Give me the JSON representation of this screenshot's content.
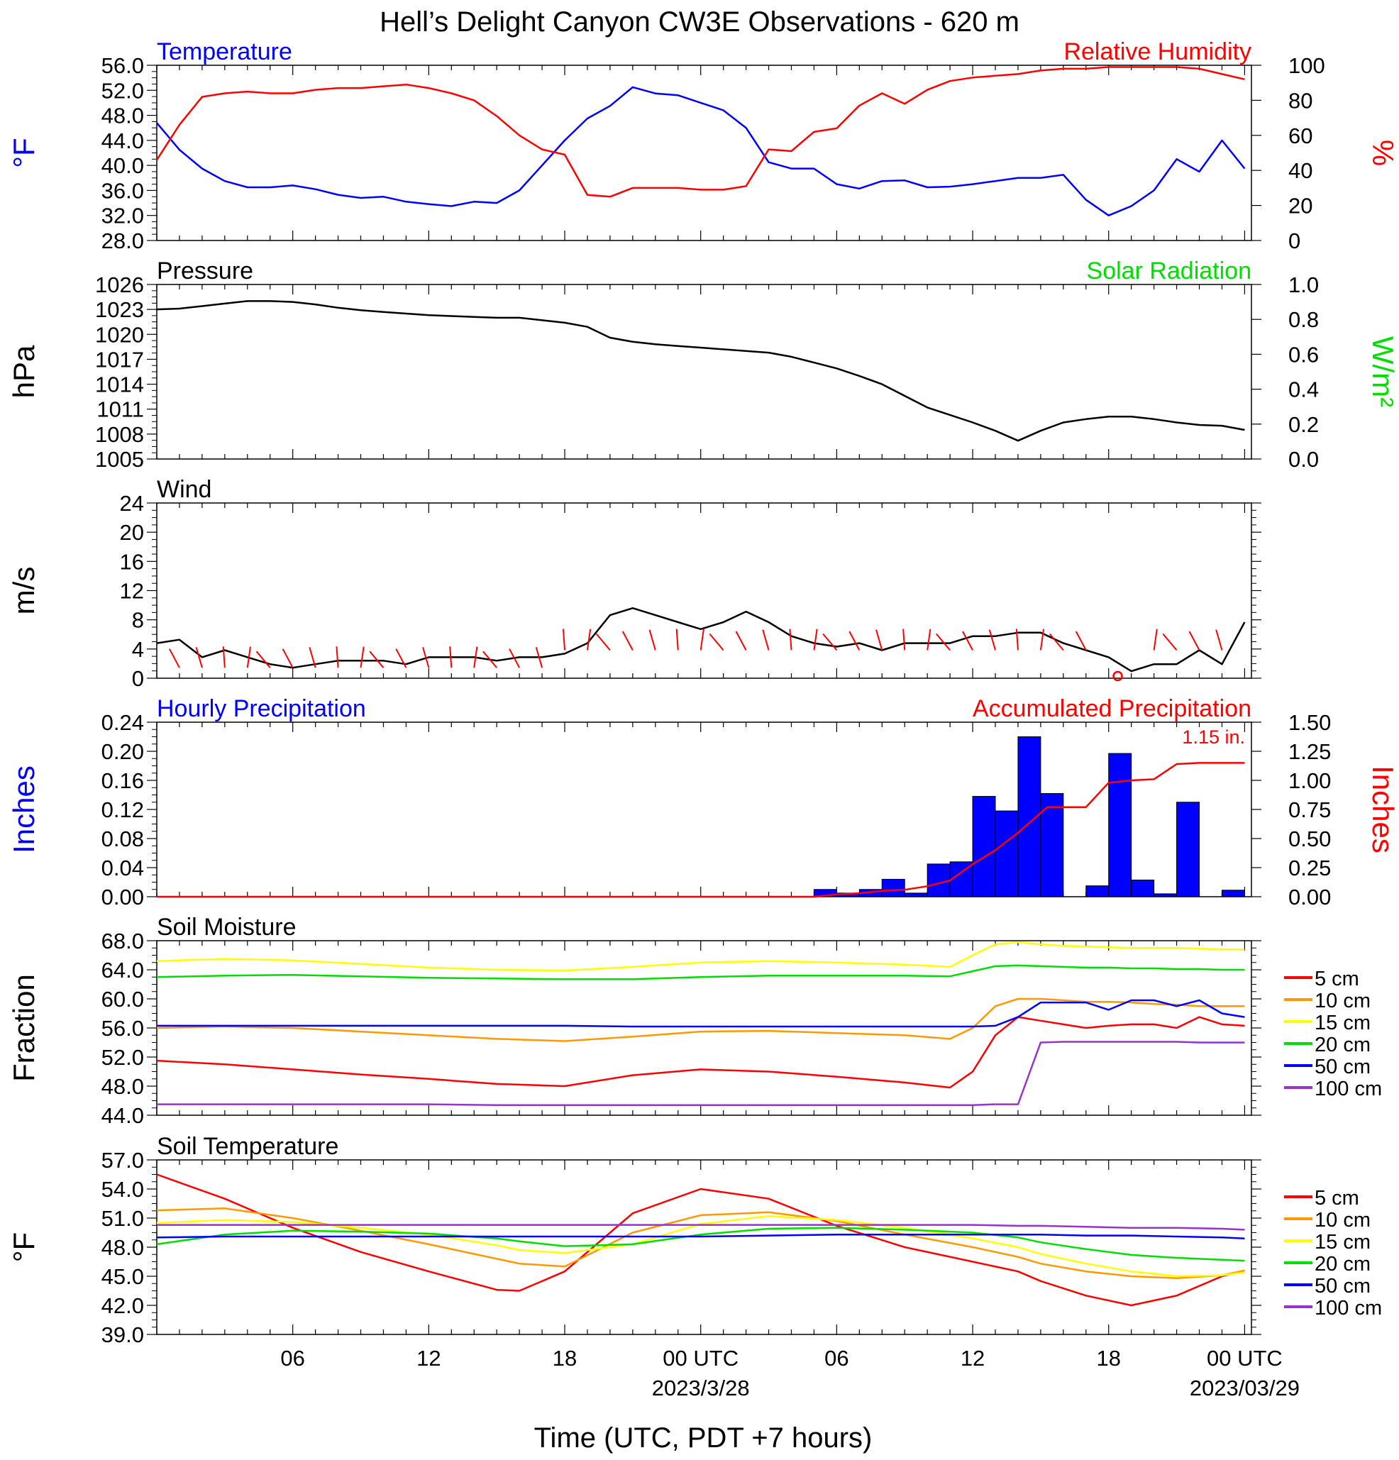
{
  "title": "Hell’s Delight Canyon CW3E Observations - 620 m",
  "x_axis": {
    "label": "Time (UTC, PDT +7 hours)",
    "tick_labels": [
      "06",
      "12",
      "18",
      "00 UTC",
      "06",
      "12",
      "18",
      "00 UTC"
    ],
    "date_labels": [
      "2023/3/28",
      "2023/03/29"
    ]
  },
  "colors": {
    "blue": "#0000ff",
    "red": "#ff0000",
    "green": "#00dd00",
    "black": "#000000",
    "orange": "#ff9900",
    "yellow": "#ffff00",
    "purple": "#9933cc"
  },
  "chart_data": [
    {
      "type": "line",
      "title": "Temperature",
      "title_right": "Relative Humidity",
      "ylabel": "°F",
      "ylabel_right": "%",
      "ylim": [
        28,
        56
      ],
      "ylim_right": [
        0,
        100
      ],
      "yticks": [
        "56.0",
        "52.0",
        "48.0",
        "44.0",
        "40.0",
        "36.0",
        "32.0",
        "28.0"
      ],
      "yticks_right": [
        "100",
        "80",
        "60",
        "40",
        "20",
        "0"
      ],
      "x_hours": [
        0,
        1,
        2,
        3,
        4,
        5,
        6,
        7,
        8,
        9,
        10,
        11,
        12,
        13,
        14,
        15,
        16,
        17,
        18,
        19,
        20,
        21,
        22,
        23,
        24,
        25,
        26,
        27,
        28,
        29,
        30,
        31,
        32,
        33,
        34,
        35,
        36,
        37,
        38,
        39,
        40,
        41,
        42,
        43,
        44,
        45,
        46,
        47,
        48
      ],
      "series": [
        {
          "name": "Temperature",
          "axis": "left",
          "color": "#0000ff",
          "values": [
            46.8,
            42.5,
            39.5,
            37.5,
            36.5,
            36.5,
            36.8,
            36.2,
            35.3,
            34.8,
            35,
            34.2,
            33.8,
            33.5,
            34.2,
            34,
            36,
            40,
            44,
            47.5,
            49.5,
            52.5,
            51.5,
            51.2,
            50,
            48.8,
            46,
            40.5,
            39.5,
            39.5,
            37,
            36.3,
            37.5,
            37.6,
            36.5,
            36.6,
            37,
            37.5,
            38,
            38,
            38.5,
            34.5,
            32,
            33.5,
            36,
            41,
            39,
            44,
            39.5
          ]
        },
        {
          "name": "Relative Humidity",
          "axis": "right",
          "color": "#ff0000",
          "values": [
            46,
            66,
            82,
            84,
            85,
            84,
            84,
            86,
            87,
            87,
            88,
            89,
            87,
            84,
            80,
            71,
            60,
            52,
            49,
            26,
            25,
            30,
            30,
            30,
            29,
            29,
            31,
            52,
            51,
            62,
            64,
            77,
            84,
            78,
            86,
            91,
            93,
            94,
            95,
            97,
            98,
            98,
            99,
            99,
            99,
            99,
            98,
            95,
            92
          ]
        }
      ]
    },
    {
      "type": "line",
      "title": "Pressure",
      "title_right": "Solar Radiation",
      "ylabel": "hPa",
      "ylabel_right": "W/m²",
      "ylim": [
        1005,
        1026
      ],
      "ylim_right": [
        0,
        1.0
      ],
      "yticks": [
        "1026",
        "1023",
        "1020",
        "1017",
        "1014",
        "1011",
        "1008",
        "1005"
      ],
      "yticks_right": [
        "1.0",
        "0.8",
        "0.6",
        "0.4",
        "0.2",
        "0.0"
      ],
      "x_hours": [
        0,
        1,
        2,
        3,
        4,
        5,
        6,
        7,
        8,
        9,
        10,
        11,
        12,
        13,
        14,
        15,
        16,
        17,
        18,
        19,
        20,
        21,
        22,
        23,
        24,
        25,
        26,
        27,
        28,
        29,
        30,
        31,
        32,
        33,
        34,
        35,
        36,
        37,
        38,
        39,
        40,
        41,
        42,
        43,
        44,
        45,
        46,
        47,
        48
      ],
      "series": [
        {
          "name": "Pressure",
          "axis": "left",
          "color": "#000000",
          "values": [
            1023,
            1023.1,
            1023.4,
            1023.7,
            1024,
            1024,
            1023.9,
            1023.6,
            1023.2,
            1022.9,
            1022.7,
            1022.5,
            1022.3,
            1022.2,
            1022.1,
            1022,
            1022,
            1021.7,
            1021.4,
            1020.9,
            1019.6,
            1019.1,
            1018.8,
            1018.6,
            1018.4,
            1018.2,
            1018,
            1017.8,
            1017.3,
            1016.6,
            1015.9,
            1015,
            1014,
            1012.6,
            1011.2,
            1010.3,
            1009.4,
            1008.4,
            1007.2,
            1008.4,
            1009.4,
            1009.8,
            1010.1,
            1010.1,
            1009.8,
            1009.4,
            1009.1,
            1009,
            1008.5
          ]
        }
      ]
    },
    {
      "type": "line",
      "title": "Wind",
      "ylabel": "m/s",
      "ylim": [
        0,
        25
      ],
      "yticks": [
        "24",
        "20",
        "16",
        "12",
        "8",
        "4",
        "0"
      ],
      "x_hours": [
        0,
        1,
        2,
        3,
        4,
        5,
        6,
        7,
        8,
        9,
        10,
        11,
        12,
        13,
        14,
        15,
        16,
        17,
        18,
        19,
        20,
        21,
        22,
        23,
        24,
        25,
        26,
        27,
        28,
        29,
        30,
        31,
        32,
        33,
        34,
        35,
        36,
        37,
        38,
        39,
        40,
        41,
        42,
        43,
        44,
        45,
        46,
        47,
        48
      ],
      "series": [
        {
          "name": "Wind",
          "color": "#000000",
          "values": [
            5,
            5.5,
            3,
            4,
            3,
            2,
            1.5,
            2,
            2.5,
            2.5,
            2.5,
            2,
            3,
            3,
            3,
            2.5,
            3,
            3,
            3.5,
            5,
            9,
            10,
            9,
            8,
            7,
            8,
            9.5,
            8,
            6,
            5,
            4.5,
            5,
            4,
            5,
            5,
            5,
            6,
            6,
            6.5,
            6.5,
            5,
            4,
            3,
            1,
            2,
            2,
            4,
            2,
            8
          ]
        }
      ],
      "barbs": {
        "color": "#ff0000",
        "calm_marker_hour": 42.4
      }
    },
    {
      "type": "bar",
      "title": "Hourly Precipitation",
      "title_right": "Accumulated Precipitation",
      "annotation": "1.15 in.",
      "ylabel": "Inches",
      "ylabel_right": "Inches",
      "ylim": [
        0,
        0.24
      ],
      "ylim_right": [
        0,
        1.5
      ],
      "yticks": [
        "0.24",
        "0.20",
        "0.16",
        "0.12",
        "0.08",
        "0.04",
        "0.00"
      ],
      "yticks_right": [
        "1.50",
        "1.25",
        "1.00",
        "0.75",
        "0.50",
        "0.25",
        "0.00"
      ],
      "bars": {
        "name": "Hourly Precipitation",
        "color": "#0000ff",
        "start_hours": [
          29,
          30,
          31,
          32,
          33,
          34,
          35,
          36,
          37,
          38,
          39,
          40,
          41,
          42,
          43,
          44,
          45,
          46,
          47
        ],
        "values": [
          0.01,
          0.005,
          0.01,
          0.024,
          0.005,
          0.045,
          0.048,
          0.138,
          0.118,
          0.22,
          0.142,
          0,
          0.015,
          0.197,
          0.023,
          0.004,
          0.13,
          0,
          0.009
        ]
      },
      "series": [
        {
          "name": "Accumulated Precipitation",
          "axis": "right",
          "color": "#ff0000",
          "x_hours": [
            0,
            29,
            30,
            31,
            32,
            33,
            34,
            35,
            36,
            37,
            38,
            39,
            39.3,
            41,
            42,
            43,
            44,
            45,
            46,
            48
          ],
          "values": [
            0,
            0,
            0.02,
            0.03,
            0.05,
            0.06,
            0.09,
            0.14,
            0.28,
            0.4,
            0.55,
            0.72,
            0.77,
            0.77,
            0.98,
            1.0,
            1.01,
            1.14,
            1.15,
            1.15
          ]
        }
      ]
    },
    {
      "type": "line",
      "title": "Soil Moisture",
      "ylabel": "Fraction",
      "ylim": [
        44,
        68
      ],
      "yticks": [
        "68.0",
        "64.0",
        "60.0",
        "56.0",
        "52.0",
        "48.0",
        "44.0"
      ],
      "x_hours": [
        0,
        3,
        6,
        9,
        12,
        15,
        18,
        21,
        24,
        27,
        30,
        33,
        35,
        36,
        37,
        38,
        39,
        40,
        41,
        42,
        43,
        44,
        45,
        46,
        47,
        48
      ],
      "series": [
        {
          "name": "5 cm",
          "color": "#ff0000",
          "values": [
            51.5,
            51,
            50.3,
            49.6,
            49,
            48.3,
            48,
            49.5,
            50.3,
            50,
            49.3,
            48.5,
            47.8,
            50,
            55,
            57.5,
            57,
            56.5,
            56,
            56.3,
            56.5,
            56.5,
            56,
            57.5,
            56.5,
            56.3
          ]
        },
        {
          "name": "10 cm",
          "color": "#ff9900",
          "values": [
            56,
            56.2,
            56,
            55.5,
            55,
            54.5,
            54.2,
            54.8,
            55.5,
            55.6,
            55.3,
            55,
            54.5,
            56,
            59,
            60,
            60,
            59.8,
            59.6,
            59.6,
            59.5,
            59.3,
            59.2,
            59,
            59,
            59
          ]
        },
        {
          "name": "15 cm",
          "color": "#ffff00",
          "values": [
            65.2,
            65.5,
            65.3,
            64.8,
            64.3,
            64,
            63.9,
            64.4,
            65,
            65.2,
            65,
            64.7,
            64.4,
            66,
            67.5,
            67.8,
            67.5,
            67.3,
            67.2,
            67.1,
            67,
            67,
            67,
            66.9,
            66.8,
            66.8
          ]
        },
        {
          "name": "20 cm",
          "color": "#00dd00",
          "values": [
            63,
            63.2,
            63.3,
            63.1,
            62.9,
            62.8,
            62.7,
            62.7,
            63,
            63.2,
            63.2,
            63.2,
            63.1,
            63.8,
            64.5,
            64.6,
            64.5,
            64.4,
            64.3,
            64.3,
            64.2,
            64.2,
            64.1,
            64.1,
            64,
            64
          ]
        },
        {
          "name": "50 cm",
          "color": "#0000ff",
          "values": [
            56.3,
            56.3,
            56.3,
            56.3,
            56.3,
            56.3,
            56.3,
            56.2,
            56.2,
            56.2,
            56.2,
            56.2,
            56.2,
            56.2,
            56.3,
            57.5,
            59.5,
            59.5,
            59.5,
            58.5,
            59.8,
            59.8,
            59,
            59.8,
            58,
            57.5
          ]
        },
        {
          "name": "100 cm",
          "color": "#9933cc",
          "values": [
            45.5,
            45.5,
            45.5,
            45.5,
            45.5,
            45.4,
            45.4,
            45.4,
            45.4,
            45.4,
            45.4,
            45.4,
            45.4,
            45.4,
            45.5,
            45.5,
            54,
            54.1,
            54.1,
            54.1,
            54.1,
            54.1,
            54.1,
            54,
            54,
            54
          ]
        }
      ]
    },
    {
      "type": "line",
      "title": "Soil Temperature",
      "ylabel": "°F",
      "ylim": [
        39,
        57
      ],
      "yticks": [
        "57.0",
        "54.0",
        "51.0",
        "48.0",
        "45.0",
        "42.0",
        "39.0"
      ],
      "x_hours": [
        0,
        3,
        6,
        9,
        12,
        15,
        16,
        18,
        21,
        24,
        27,
        30,
        33,
        36,
        38,
        39,
        41,
        43,
        45,
        47,
        48
      ],
      "series": [
        {
          "name": "5 cm",
          "color": "#ff0000",
          "values": [
            55.5,
            53,
            50,
            47.5,
            45.5,
            43.6,
            43.5,
            45.5,
            51.5,
            54,
            53,
            50.2,
            48,
            46.5,
            45.5,
            44.5,
            43,
            42,
            43,
            45,
            45.6
          ]
        },
        {
          "name": "10 cm",
          "color": "#ff9900",
          "values": [
            51.8,
            52,
            51,
            49.7,
            48.3,
            46.8,
            46.3,
            46,
            49.5,
            51.3,
            51.6,
            50.7,
            49.3,
            48,
            47,
            46.3,
            45.5,
            45,
            44.8,
            45.1,
            45.6
          ]
        },
        {
          "name": "15 cm",
          "color": "#ffff00",
          "values": [
            50.5,
            50.8,
            50.6,
            50,
            49.3,
            48.2,
            47.7,
            47.4,
            48.3,
            50.4,
            51.2,
            50.8,
            50,
            48.9,
            48,
            47.3,
            46.3,
            45.5,
            45,
            45.1,
            45.4
          ]
        },
        {
          "name": "20 cm",
          "color": "#00dd00",
          "values": [
            48.3,
            49.3,
            49.7,
            49.6,
            49.4,
            48.9,
            48.6,
            48.1,
            48.3,
            49.3,
            49.9,
            50,
            49.8,
            49.5,
            49,
            48.5,
            47.8,
            47.2,
            46.9,
            46.7,
            46.6
          ]
        },
        {
          "name": "50 cm",
          "color": "#0000ff",
          "values": [
            49,
            49.1,
            49.1,
            49.1,
            49.1,
            49.1,
            49.1,
            49.1,
            49.1,
            49.1,
            49.2,
            49.3,
            49.3,
            49.3,
            49.3,
            49.3,
            49.2,
            49.2,
            49.1,
            49,
            48.9
          ]
        },
        {
          "name": "100 cm",
          "color": "#9933cc",
          "values": [
            50.3,
            50.3,
            50.3,
            50.3,
            50.3,
            50.3,
            50.3,
            50.3,
            50.3,
            50.3,
            50.3,
            50.3,
            50.3,
            50.3,
            50.2,
            50.2,
            50.1,
            50,
            50,
            49.9,
            49.8
          ]
        }
      ]
    }
  ]
}
